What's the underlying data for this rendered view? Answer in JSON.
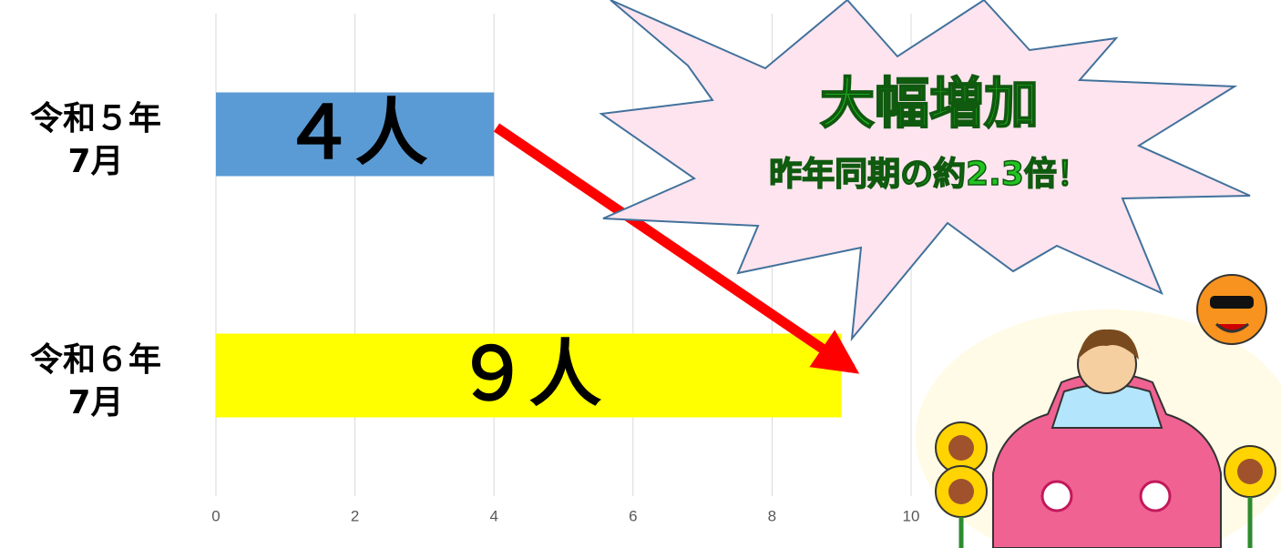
{
  "chart_data": {
    "type": "bar",
    "orientation": "horizontal",
    "categories": [
      "令和５年\n7月",
      "令和６年\n7月"
    ],
    "values": [
      4,
      9
    ],
    "value_labels": [
      "４人",
      "９人"
    ],
    "colors": [
      "#5b9bd5",
      "#ffff00"
    ],
    "xlim": [
      0,
      10
    ],
    "xticks": [
      0,
      2,
      4,
      6,
      8,
      10
    ],
    "grid": true,
    "annotations": [
      "大幅増加",
      "昨年同期の約2.3倍！"
    ]
  }
}
